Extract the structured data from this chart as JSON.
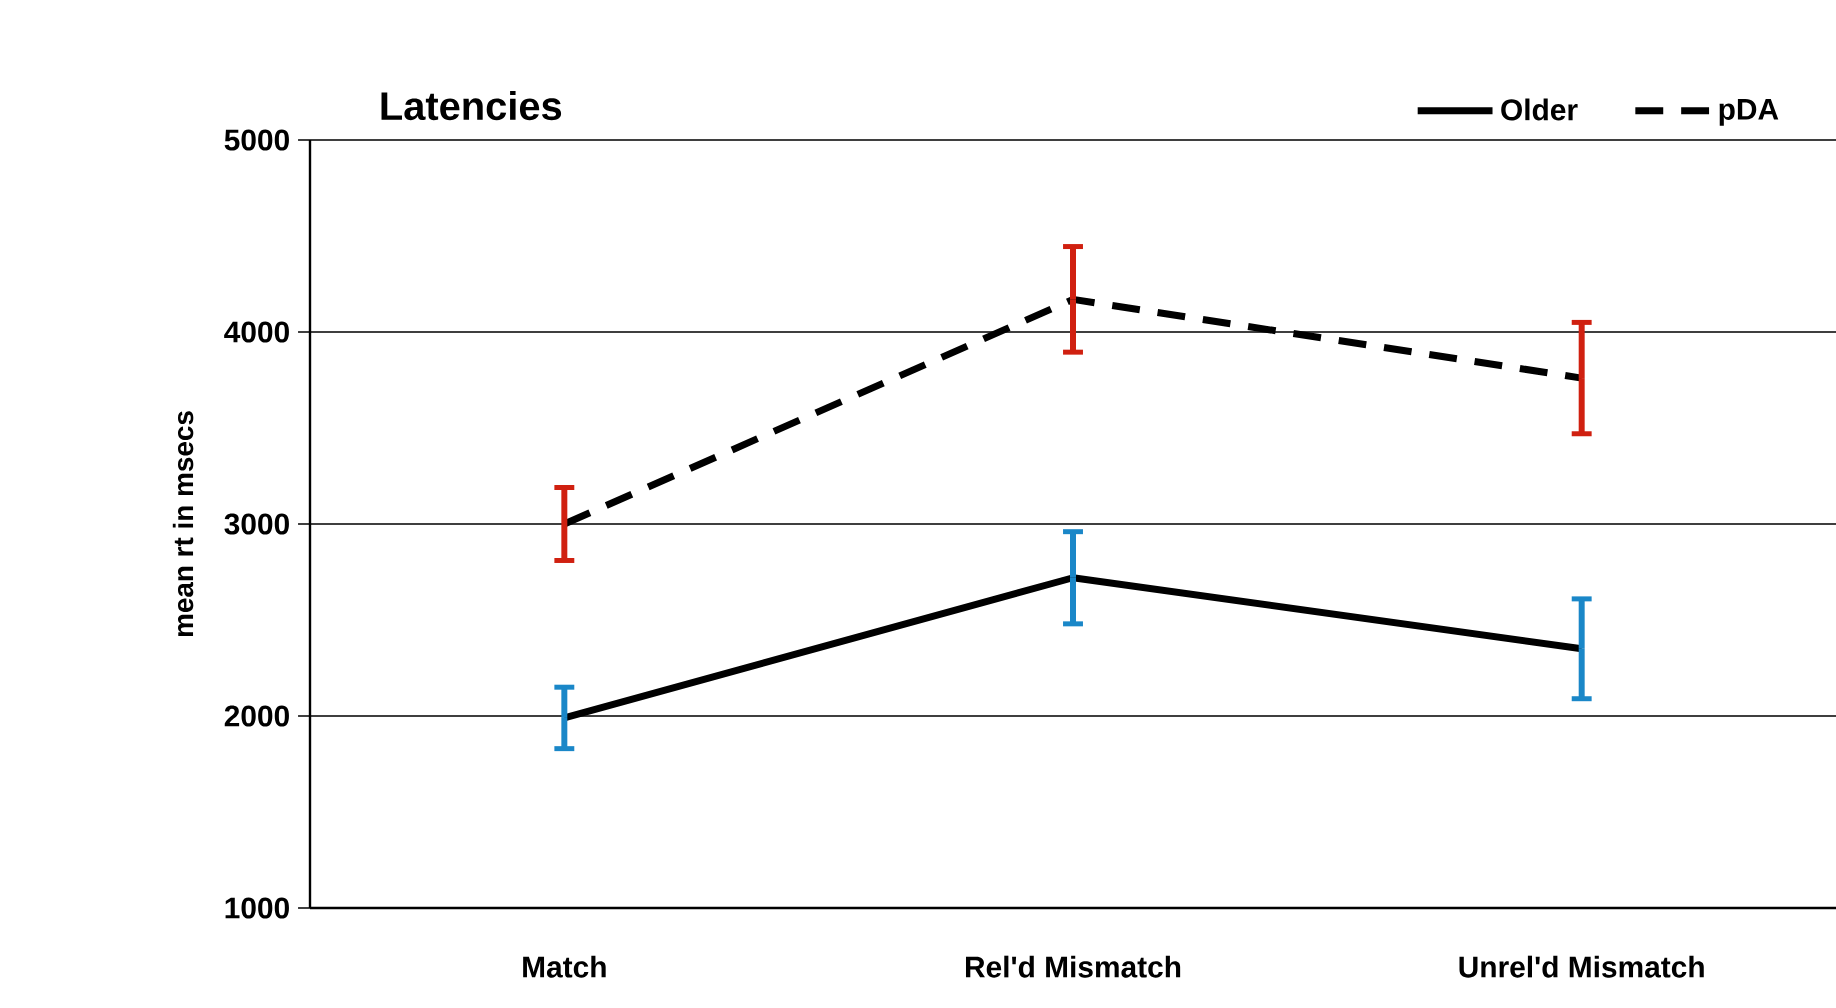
{
  "chart_data": {
    "type": "line",
    "title": "Latencies",
    "ylabel": "mean rt in msecs",
    "categories": [
      "Match",
      "Rel'd Mismatch",
      "Unrel'd Mismatch"
    ],
    "series": [
      {
        "name": "Older",
        "color": "#000000",
        "values": [
          1990,
          2720,
          2350
        ],
        "errors": [
          160,
          240,
          260
        ],
        "line_style": "solid"
      },
      {
        "name": "pDA",
        "color": "#000000",
        "values": [
          3000,
          4170,
          3760
        ],
        "errors": [
          190,
          275,
          290
        ],
        "line_style": "dashed"
      }
    ],
    "ylim": [
      1000,
      5000
    ],
    "yticks": [
      1000,
      2000,
      3000,
      4000,
      5000
    ],
    "grid": "y",
    "legend": "top right",
    "marker": "none"
  }
}
